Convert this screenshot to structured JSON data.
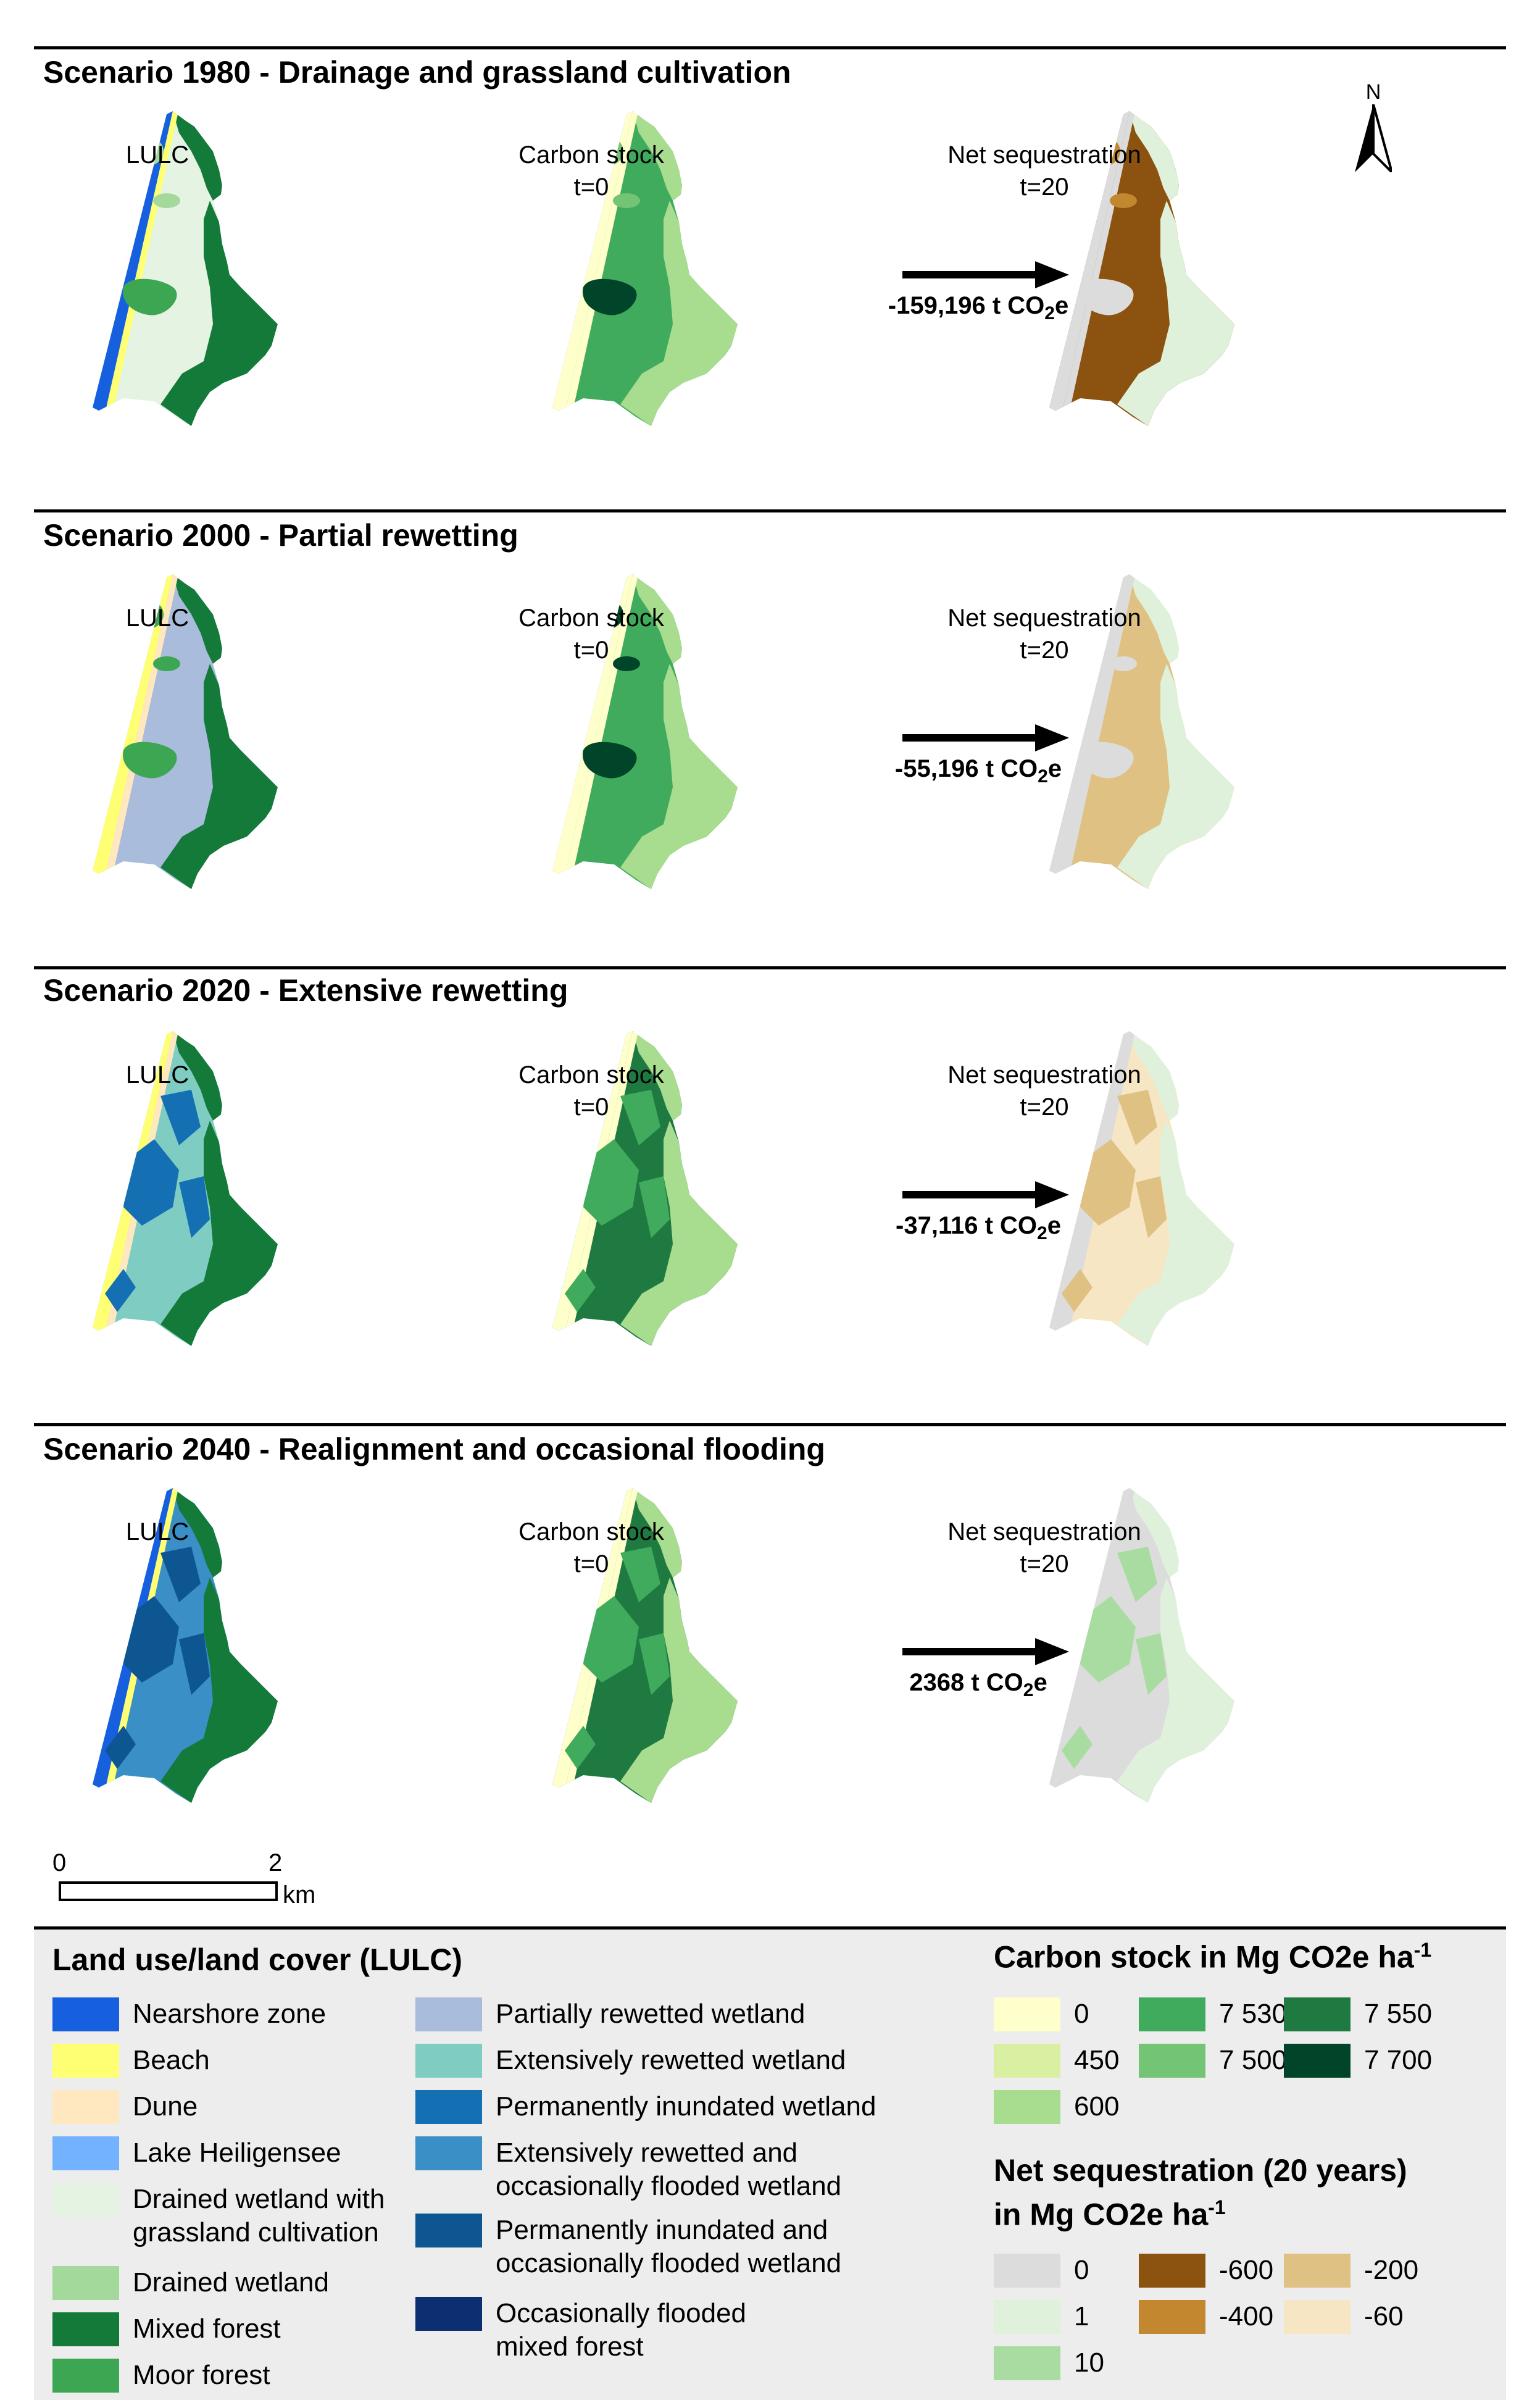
{
  "scenarios": [
    {
      "title": "Scenario 1980 - Drainage and grassland cultivation",
      "lulc_label": "LULC",
      "carbon_label": "Carbon stock",
      "carbon_time": "t=0",
      "net_label": "Net sequestration",
      "net_time": "t=20",
      "flux": "-159,196 t CO",
      "flux_sub": "2",
      "flux_unit": "e"
    },
    {
      "title": "Scenario 2000 - Partial rewetting",
      "lulc_label": "LULC",
      "carbon_label": "Carbon stock",
      "carbon_time": "t=0",
      "net_label": "Net sequestration",
      "net_time": "t=20",
      "flux": "-55,196 t CO",
      "flux_sub": "2",
      "flux_unit": "e"
    },
    {
      "title": "Scenario 2020 - Extensive rewetting",
      "lulc_label": "LULC",
      "carbon_label": "Carbon stock",
      "carbon_time": "t=0",
      "net_label": "Net sequestration",
      "net_time": "t=20",
      "flux": "-37,116 t CO",
      "flux_sub": "2",
      "flux_unit": "e"
    },
    {
      "title": "Scenario 2040 - Realignment and occasional flooding",
      "lulc_label": "LULC",
      "carbon_label": "Carbon stock",
      "carbon_time": "t=0",
      "net_label": "Net sequestration",
      "net_time": "t=20",
      "flux": "2368 t CO",
      "flux_sub": "2",
      "flux_unit": "e"
    }
  ],
  "north_label": "N",
  "scale_bar": {
    "start": "0",
    "end": "2",
    "unit": "km"
  },
  "legend": {
    "lulc_title": "Land use/land cover  (LULC)",
    "lulc_items": [
      {
        "label": "Nearshore zone",
        "color": "#1660e0"
      },
      {
        "label": "Beach",
        "color": "#ffff73"
      },
      {
        "label": "Dune",
        "color": "#ffe8bf"
      },
      {
        "label": "Lake Heiligensee",
        "color": "#73b2ff"
      },
      {
        "label": "Drained wetland with\ngrassland cultivation",
        "color": "#e5f3e3"
      },
      {
        "label": "Drained wetland",
        "color": "#a3d99a"
      },
      {
        "label": "Mixed forest",
        "color": "#137a3a"
      },
      {
        "label": "Moor forest",
        "color": "#3ca653"
      },
      {
        "label": "Partially rewetted wetland",
        "color": "#a9bcdb"
      },
      {
        "label": "Extensively rewetted wetland",
        "color": "#7fcdc2"
      },
      {
        "label": "Permanently inundated wetland",
        "color": "#1470b3"
      },
      {
        "label": "Extensively rewetted and\noccasionally flooded wetland",
        "color": "#3a8fc7"
      },
      {
        "label": "Permanently inundated and\noccasionally flooded wetland",
        "color": "#0d5691"
      },
      {
        "label": "Occasionally flooded\nmixed forest",
        "color": "#0b2f70"
      }
    ],
    "carbon_title": "Carbon stock  in Mg CO2e ha",
    "carbon_sup": "-1",
    "carbon_items": [
      {
        "label": "0",
        "color": "#ffffcc"
      },
      {
        "label": "450",
        "color": "#d9f0a3"
      },
      {
        "label": "600",
        "color": "#a8dc8f"
      },
      {
        "label": "7 530",
        "color": "#41ab5d"
      },
      {
        "label": "7 500",
        "color": "#74c476"
      },
      {
        "label": "7 550",
        "color": "#1f7a42"
      },
      {
        "label": "7 700",
        "color": "#00452a"
      }
    ],
    "net_title_line1": "Net sequestration (20 years)",
    "net_title_line2": "in Mg CO2e ha",
    "net_sup": "-1",
    "net_items": [
      {
        "label": "0",
        "color": "#dcdcdc"
      },
      {
        "label": "1",
        "color": "#dff1da"
      },
      {
        "label": "10",
        "color": "#a8dca0"
      },
      {
        "label": "-600",
        "color": "#8c520f"
      },
      {
        "label": "-400",
        "color": "#c2872f"
      },
      {
        "label": "-200",
        "color": "#dfc283"
      },
      {
        "label": "-60",
        "color": "#f6e6c3"
      }
    ]
  }
}
